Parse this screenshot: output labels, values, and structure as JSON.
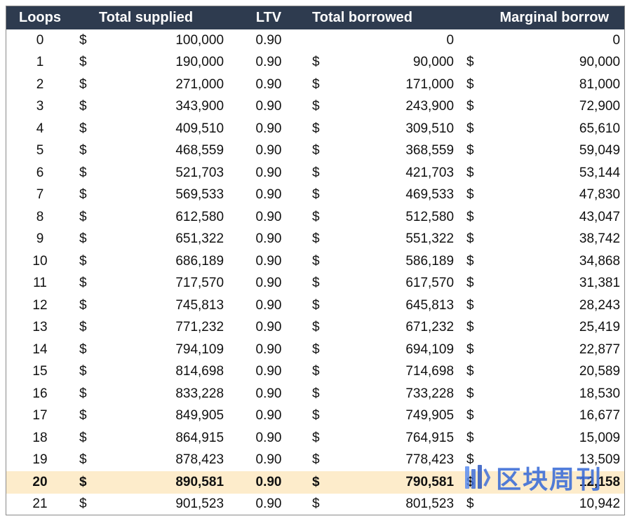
{
  "headers": {
    "loops": "Loops",
    "total_supplied": "Total supplied",
    "ltv": "LTV",
    "total_borrowed": "Total borrowed",
    "marginal_borrow": "Marginal borrow"
  },
  "currency_symbol": "$",
  "highlight_loop": "20",
  "highlight_color": "#fdeccb",
  "header_color": "#2e3b4f",
  "rows": [
    {
      "loop": "0",
      "supplied": "100,000",
      "ltv": "0.90",
      "borrowed": "0",
      "marginal": "0",
      "borrowed_dollar": false,
      "marginal_dollar": false
    },
    {
      "loop": "1",
      "supplied": "190,000",
      "ltv": "0.90",
      "borrowed": "90,000",
      "marginal": "90,000",
      "borrowed_dollar": true,
      "marginal_dollar": true
    },
    {
      "loop": "2",
      "supplied": "271,000",
      "ltv": "0.90",
      "borrowed": "171,000",
      "marginal": "81,000",
      "borrowed_dollar": true,
      "marginal_dollar": true
    },
    {
      "loop": "3",
      "supplied": "343,900",
      "ltv": "0.90",
      "borrowed": "243,900",
      "marginal": "72,900",
      "borrowed_dollar": true,
      "marginal_dollar": true
    },
    {
      "loop": "4",
      "supplied": "409,510",
      "ltv": "0.90",
      "borrowed": "309,510",
      "marginal": "65,610",
      "borrowed_dollar": true,
      "marginal_dollar": true
    },
    {
      "loop": "5",
      "supplied": "468,559",
      "ltv": "0.90",
      "borrowed": "368,559",
      "marginal": "59,049",
      "borrowed_dollar": true,
      "marginal_dollar": true
    },
    {
      "loop": "6",
      "supplied": "521,703",
      "ltv": "0.90",
      "borrowed": "421,703",
      "marginal": "53,144",
      "borrowed_dollar": true,
      "marginal_dollar": true
    },
    {
      "loop": "7",
      "supplied": "569,533",
      "ltv": "0.90",
      "borrowed": "469,533",
      "marginal": "47,830",
      "borrowed_dollar": true,
      "marginal_dollar": true
    },
    {
      "loop": "8",
      "supplied": "612,580",
      "ltv": "0.90",
      "borrowed": "512,580",
      "marginal": "43,047",
      "borrowed_dollar": true,
      "marginal_dollar": true
    },
    {
      "loop": "9",
      "supplied": "651,322",
      "ltv": "0.90",
      "borrowed": "551,322",
      "marginal": "38,742",
      "borrowed_dollar": true,
      "marginal_dollar": true
    },
    {
      "loop": "10",
      "supplied": "686,189",
      "ltv": "0.90",
      "borrowed": "586,189",
      "marginal": "34,868",
      "borrowed_dollar": true,
      "marginal_dollar": true
    },
    {
      "loop": "11",
      "supplied": "717,570",
      "ltv": "0.90",
      "borrowed": "617,570",
      "marginal": "31,381",
      "borrowed_dollar": true,
      "marginal_dollar": true
    },
    {
      "loop": "12",
      "supplied": "745,813",
      "ltv": "0.90",
      "borrowed": "645,813",
      "marginal": "28,243",
      "borrowed_dollar": true,
      "marginal_dollar": true
    },
    {
      "loop": "13",
      "supplied": "771,232",
      "ltv": "0.90",
      "borrowed": "671,232",
      "marginal": "25,419",
      "borrowed_dollar": true,
      "marginal_dollar": true
    },
    {
      "loop": "14",
      "supplied": "794,109",
      "ltv": "0.90",
      "borrowed": "694,109",
      "marginal": "22,877",
      "borrowed_dollar": true,
      "marginal_dollar": true
    },
    {
      "loop": "15",
      "supplied": "814,698",
      "ltv": "0.90",
      "borrowed": "714,698",
      "marginal": "20,589",
      "borrowed_dollar": true,
      "marginal_dollar": true
    },
    {
      "loop": "16",
      "supplied": "833,228",
      "ltv": "0.90",
      "borrowed": "733,228",
      "marginal": "18,530",
      "borrowed_dollar": true,
      "marginal_dollar": true
    },
    {
      "loop": "17",
      "supplied": "849,905",
      "ltv": "0.90",
      "borrowed": "749,905",
      "marginal": "16,677",
      "borrowed_dollar": true,
      "marginal_dollar": true
    },
    {
      "loop": "18",
      "supplied": "864,915",
      "ltv": "0.90",
      "borrowed": "764,915",
      "marginal": "15,009",
      "borrowed_dollar": true,
      "marginal_dollar": true
    },
    {
      "loop": "19",
      "supplied": "878,423",
      "ltv": "0.90",
      "borrowed": "778,423",
      "marginal": "13,509",
      "borrowed_dollar": true,
      "marginal_dollar": true
    },
    {
      "loop": "20",
      "supplied": "890,581",
      "ltv": "0.90",
      "borrowed": "790,581",
      "marginal": "12,158",
      "borrowed_dollar": true,
      "marginal_dollar": true
    },
    {
      "loop": "21",
      "supplied": "901,523",
      "ltv": "0.90",
      "borrowed": "801,523",
      "marginal": "10,942",
      "borrowed_dollar": true,
      "marginal_dollar": true
    }
  ],
  "watermark": {
    "text": "区块周刊",
    "icon": "blockchain-weekly-logo-icon",
    "color": "#3f6fd8"
  }
}
